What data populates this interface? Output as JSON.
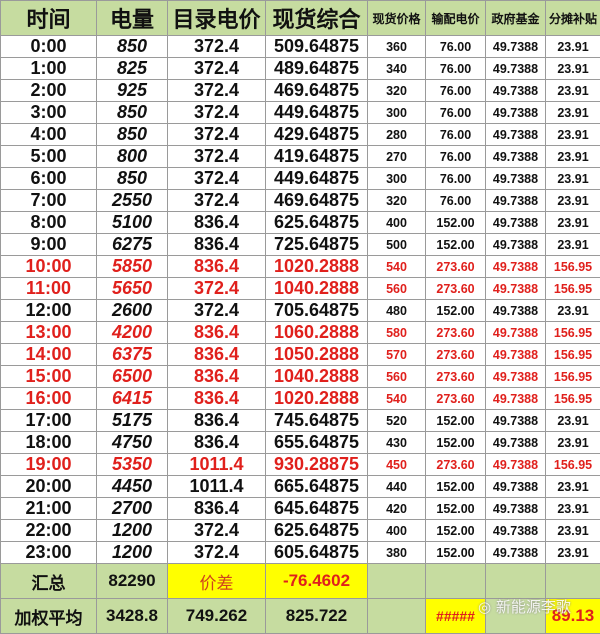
{
  "header": [
    "时间",
    "电量",
    "目录电价",
    "现货综合",
    "现货价格",
    "输配电价",
    "政府基金",
    "分摊补贴"
  ],
  "rows": [
    {
      "time": "0:00",
      "volume": "850",
      "catalog": "372.4",
      "spot_total": "509.64875",
      "spot": "360",
      "transmission": "76.00",
      "fund": "49.7388",
      "subsidy": "23.91",
      "highlight": false
    },
    {
      "time": "1:00",
      "volume": "825",
      "catalog": "372.4",
      "spot_total": "489.64875",
      "spot": "340",
      "transmission": "76.00",
      "fund": "49.7388",
      "subsidy": "23.91",
      "highlight": false
    },
    {
      "time": "2:00",
      "volume": "925",
      "catalog": "372.4",
      "spot_total": "469.64875",
      "spot": "320",
      "transmission": "76.00",
      "fund": "49.7388",
      "subsidy": "23.91",
      "highlight": false
    },
    {
      "time": "3:00",
      "volume": "850",
      "catalog": "372.4",
      "spot_total": "449.64875",
      "spot": "300",
      "transmission": "76.00",
      "fund": "49.7388",
      "subsidy": "23.91",
      "highlight": false
    },
    {
      "time": "4:00",
      "volume": "850",
      "catalog": "372.4",
      "spot_total": "429.64875",
      "spot": "280",
      "transmission": "76.00",
      "fund": "49.7388",
      "subsidy": "23.91",
      "highlight": false
    },
    {
      "time": "5:00",
      "volume": "800",
      "catalog": "372.4",
      "spot_total": "419.64875",
      "spot": "270",
      "transmission": "76.00",
      "fund": "49.7388",
      "subsidy": "23.91",
      "highlight": false
    },
    {
      "time": "6:00",
      "volume": "850",
      "catalog": "372.4",
      "spot_total": "449.64875",
      "spot": "300",
      "transmission": "76.00",
      "fund": "49.7388",
      "subsidy": "23.91",
      "highlight": false
    },
    {
      "time": "7:00",
      "volume": "2550",
      "catalog": "372.4",
      "spot_total": "469.64875",
      "spot": "320",
      "transmission": "76.00",
      "fund": "49.7388",
      "subsidy": "23.91",
      "highlight": false
    },
    {
      "time": "8:00",
      "volume": "5100",
      "catalog": "836.4",
      "spot_total": "625.64875",
      "spot": "400",
      "transmission": "152.00",
      "fund": "49.7388",
      "subsidy": "23.91",
      "highlight": false
    },
    {
      "time": "9:00",
      "volume": "6275",
      "catalog": "836.4",
      "spot_total": "725.64875",
      "spot": "500",
      "transmission": "152.00",
      "fund": "49.7388",
      "subsidy": "23.91",
      "highlight": false
    },
    {
      "time": "10:00",
      "volume": "5850",
      "catalog": "836.4",
      "spot_total": "1020.2888",
      "spot": "540",
      "transmission": "273.60",
      "fund": "49.7388",
      "subsidy": "156.95",
      "highlight": true
    },
    {
      "time": "11:00",
      "volume": "5650",
      "catalog": "372.4",
      "spot_total": "1040.2888",
      "spot": "560",
      "transmission": "273.60",
      "fund": "49.7388",
      "subsidy": "156.95",
      "highlight": true
    },
    {
      "time": "12:00",
      "volume": "2600",
      "catalog": "372.4",
      "spot_total": "705.64875",
      "spot": "480",
      "transmission": "152.00",
      "fund": "49.7388",
      "subsidy": "23.91",
      "highlight": false
    },
    {
      "time": "13:00",
      "volume": "4200",
      "catalog": "836.4",
      "spot_total": "1060.2888",
      "spot": "580",
      "transmission": "273.60",
      "fund": "49.7388",
      "subsidy": "156.95",
      "highlight": true
    },
    {
      "time": "14:00",
      "volume": "6375",
      "catalog": "836.4",
      "spot_total": "1050.2888",
      "spot": "570",
      "transmission": "273.60",
      "fund": "49.7388",
      "subsidy": "156.95",
      "highlight": true
    },
    {
      "time": "15:00",
      "volume": "6500",
      "catalog": "836.4",
      "spot_total": "1040.2888",
      "spot": "560",
      "transmission": "273.60",
      "fund": "49.7388",
      "subsidy": "156.95",
      "highlight": true
    },
    {
      "time": "16:00",
      "volume": "6415",
      "catalog": "836.4",
      "spot_total": "1020.2888",
      "spot": "540",
      "transmission": "273.60",
      "fund": "49.7388",
      "subsidy": "156.95",
      "highlight": true
    },
    {
      "time": "17:00",
      "volume": "5175",
      "catalog": "836.4",
      "spot_total": "745.64875",
      "spot": "520",
      "transmission": "152.00",
      "fund": "49.7388",
      "subsidy": "23.91",
      "highlight": false
    },
    {
      "time": "18:00",
      "volume": "4750",
      "catalog": "836.4",
      "spot_total": "655.64875",
      "spot": "430",
      "transmission": "152.00",
      "fund": "49.7388",
      "subsidy": "23.91",
      "highlight": false
    },
    {
      "time": "19:00",
      "volume": "5350",
      "catalog": "1011.4",
      "spot_total": "930.28875",
      "spot": "450",
      "transmission": "273.60",
      "fund": "49.7388",
      "subsidy": "156.95",
      "highlight": true
    },
    {
      "time": "20:00",
      "volume": "4450",
      "catalog": "1011.4",
      "spot_total": "665.64875",
      "spot": "440",
      "transmission": "152.00",
      "fund": "49.7388",
      "subsidy": "23.91",
      "highlight": false
    },
    {
      "time": "21:00",
      "volume": "2700",
      "catalog": "836.4",
      "spot_total": "645.64875",
      "spot": "420",
      "transmission": "152.00",
      "fund": "49.7388",
      "subsidy": "23.91",
      "highlight": false
    },
    {
      "time": "22:00",
      "volume": "1200",
      "catalog": "372.4",
      "spot_total": "625.64875",
      "spot": "400",
      "transmission": "152.00",
      "fund": "49.7388",
      "subsidy": "23.91",
      "highlight": false
    },
    {
      "time": "23:00",
      "volume": "1200",
      "catalog": "372.4",
      "spot_total": "605.64875",
      "spot": "380",
      "transmission": "152.00",
      "fund": "49.7388",
      "subsidy": "23.91",
      "highlight": false
    }
  ],
  "summary": {
    "total_label": "汇总",
    "total_volume": "82290",
    "diff_label": "价差",
    "diff_value": "-76.4602",
    "avg_label": "加权平均",
    "avg_volume": "3428.8",
    "avg_catalog": "749.262",
    "avg_spot_total": "825.722",
    "avg_transmission": "#####",
    "avg_subsidy": "89.13"
  },
  "watermark": "新能源李歌",
  "colors": {
    "header_bg": "#c6dca0",
    "highlight_red": "#e0201c",
    "yellow": "#ffff00"
  }
}
